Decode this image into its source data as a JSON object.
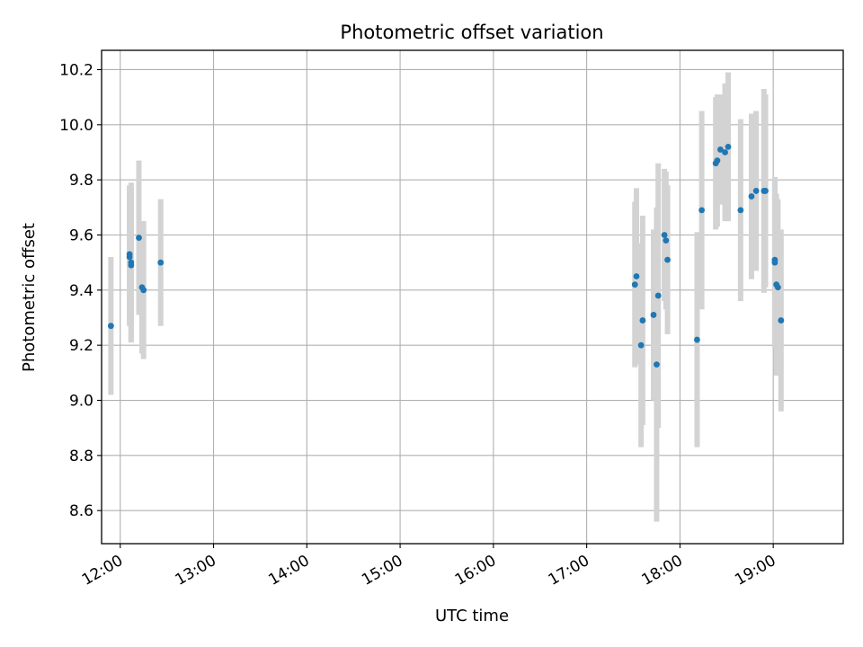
{
  "chart_data": {
    "type": "scatter",
    "title": "Photometric offset variation",
    "xlabel": "UTC time",
    "ylabel": "Photometric offset",
    "x_ticks": [
      "12:00",
      "13:00",
      "14:00",
      "15:00",
      "16:00",
      "17:00",
      "18:00",
      "19:00"
    ],
    "y_ticks": [
      "8.6",
      "8.8",
      "9.0",
      "9.2",
      "9.4",
      "9.6",
      "9.8",
      "10.0",
      "10.2"
    ],
    "xlim": [
      "11:48",
      "19:45"
    ],
    "ylim": [
      8.48,
      10.27
    ],
    "grid": true,
    "errorbar_color": "#d3d3d3",
    "marker_color": "#1f77b4",
    "points": [
      {
        "x": "11:54",
        "y": 9.27,
        "err": 0.25
      },
      {
        "x": "12:06",
        "y": 9.52,
        "err": 0.25
      },
      {
        "x": "12:06",
        "y": 9.53,
        "err": 0.25
      },
      {
        "x": "12:07",
        "y": 9.5,
        "err": 0.29
      },
      {
        "x": "12:07",
        "y": 9.49,
        "err": 0.28
      },
      {
        "x": "12:12",
        "y": 9.59,
        "err": 0.28
      },
      {
        "x": "12:14",
        "y": 9.41,
        "err": 0.24
      },
      {
        "x": "12:15",
        "y": 9.4,
        "err": 0.25
      },
      {
        "x": "12:26",
        "y": 9.5,
        "err": 0.23
      },
      {
        "x": "17:31",
        "y": 9.42,
        "err": 0.3
      },
      {
        "x": "17:32",
        "y": 9.45,
        "err": 0.32
      },
      {
        "x": "17:35",
        "y": 9.2,
        "err": 0.37
      },
      {
        "x": "17:36",
        "y": 9.29,
        "err": 0.38
      },
      {
        "x": "17:43",
        "y": 9.31,
        "err": 0.31
      },
      {
        "x": "17:45",
        "y": 9.13,
        "err": 0.57
      },
      {
        "x": "17:46",
        "y": 9.38,
        "err": 0.48
      },
      {
        "x": "17:50",
        "y": 9.6,
        "err": 0.24
      },
      {
        "x": "17:51",
        "y": 9.58,
        "err": 0.25
      },
      {
        "x": "17:52",
        "y": 9.51,
        "err": 0.27
      },
      {
        "x": "18:11",
        "y": 9.22,
        "err": 0.39
      },
      {
        "x": "18:14",
        "y": 9.69,
        "err": 0.36
      },
      {
        "x": "18:23",
        "y": 9.86,
        "err": 0.24
      },
      {
        "x": "18:24",
        "y": 9.87,
        "err": 0.24
      },
      {
        "x": "18:26",
        "y": 9.91,
        "err": 0.2
      },
      {
        "x": "18:29",
        "y": 9.9,
        "err": 0.25
      },
      {
        "x": "18:31",
        "y": 9.92,
        "err": 0.27
      },
      {
        "x": "18:39",
        "y": 9.69,
        "err": 0.33
      },
      {
        "x": "18:46",
        "y": 9.74,
        "err": 0.3
      },
      {
        "x": "18:49",
        "y": 9.76,
        "err": 0.29
      },
      {
        "x": "18:54",
        "y": 9.76,
        "err": 0.37
      },
      {
        "x": "18:55",
        "y": 9.76,
        "err": 0.35
      },
      {
        "x": "19:01",
        "y": 9.5,
        "err": 0.31
      },
      {
        "x": "19:01",
        "y": 9.51,
        "err": 0.3
      },
      {
        "x": "19:02",
        "y": 9.42,
        "err": 0.33
      },
      {
        "x": "19:03",
        "y": 9.41,
        "err": 0.32
      },
      {
        "x": "19:05",
        "y": 9.29,
        "err": 0.33
      }
    ]
  }
}
